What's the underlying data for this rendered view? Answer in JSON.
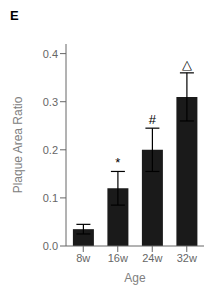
{
  "chart_data": {
    "type": "bar",
    "panel_label": "E",
    "xlabel": "Age",
    "ylabel": "Plaque Area Ratio",
    "categories": [
      "8w",
      "16w",
      "24w",
      "32w"
    ],
    "values": [
      0.035,
      0.12,
      0.2,
      0.31
    ],
    "errors": [
      0.01,
      0.035,
      0.045,
      0.05
    ],
    "color": "#1a1a1a",
    "ylim": [
      0,
      0.42
    ],
    "yticks": [
      {
        "value": 0,
        "label": "0.0"
      },
      0.1,
      0.2,
      0.3,
      0.4
    ],
    "grid": false,
    "annotations": [
      {
        "category": "16w",
        "text": "*"
      },
      {
        "category": "24w",
        "text": "#"
      },
      {
        "category": "32w",
        "text": "△"
      }
    ]
  }
}
